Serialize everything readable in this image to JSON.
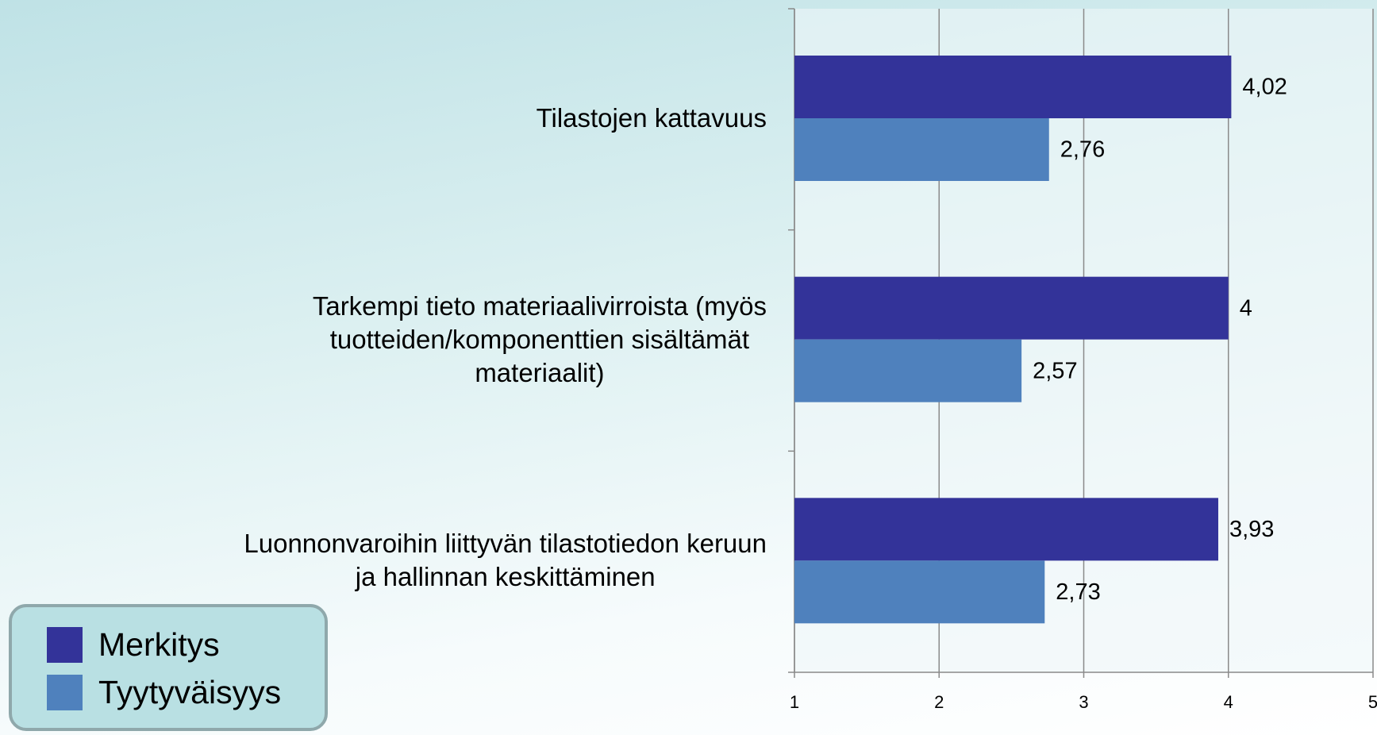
{
  "chart_data": {
    "type": "barh",
    "categories": [
      "Tilastojen kattavuus",
      "Tarkempi tieto materiaalivirroista (myös\ntuotteiden/komponenttien sisältämät\nmateriaalit)",
      "Luonnonvaroihin liittyvän tilastotiedon keruun\nja hallinnan keskittäminen"
    ],
    "series": [
      {
        "name": "Merkitys",
        "color": "#333399",
        "values": [
          4.02,
          4,
          3.93
        ],
        "value_labels": [
          "4,02",
          "4",
          "3,93"
        ]
      },
      {
        "name": "Tyytyväisyys",
        "color": "#4f81bd",
        "values": [
          2.76,
          2.57,
          2.73
        ],
        "value_labels": [
          "2,76",
          "2,57",
          "2,73"
        ]
      }
    ],
    "xlim": [
      1,
      5
    ],
    "xticks": [
      1,
      2,
      3,
      4,
      5
    ],
    "grid": true,
    "legend": "lower left"
  }
}
